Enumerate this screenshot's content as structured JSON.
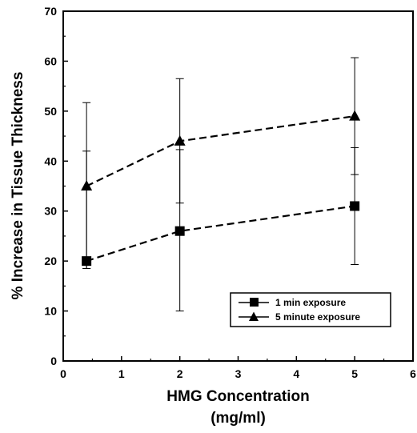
{
  "chart_data": {
    "type": "line",
    "xlabel": "HMG Concentration",
    "xlabel_line2": "(mg/ml)",
    "ylabel": "% Increase in Tissue Thickness",
    "xlim": [
      0,
      6
    ],
    "ylim": [
      0,
      70
    ],
    "x_ticks": [
      "0",
      "1",
      "2",
      "3",
      "4",
      "5",
      "6"
    ],
    "y_ticks": [
      "0",
      "10",
      "20",
      "30",
      "40",
      "50",
      "60",
      "70"
    ],
    "grid": false,
    "legend_position": "bottom-right",
    "series": [
      {
        "name": "1 min exposure",
        "marker": "square",
        "x": [
          0.4,
          2,
          5
        ],
        "y": [
          20,
          26,
          31
        ],
        "err_low": [
          18.5,
          10,
          19.3
        ],
        "err_high": [
          42,
          42.3,
          42.7
        ]
      },
      {
        "name": "5 minute exposure",
        "marker": "triangle",
        "x": [
          0.4,
          2,
          5
        ],
        "y": [
          35,
          44,
          49
        ],
        "err_low": [
          18.5,
          31.6,
          37.3
        ],
        "err_high": [
          51.7,
          56.5,
          60.7
        ]
      }
    ],
    "colors": {
      "line": "#000000",
      "marker": "#000000",
      "background": "#ffffff"
    }
  }
}
